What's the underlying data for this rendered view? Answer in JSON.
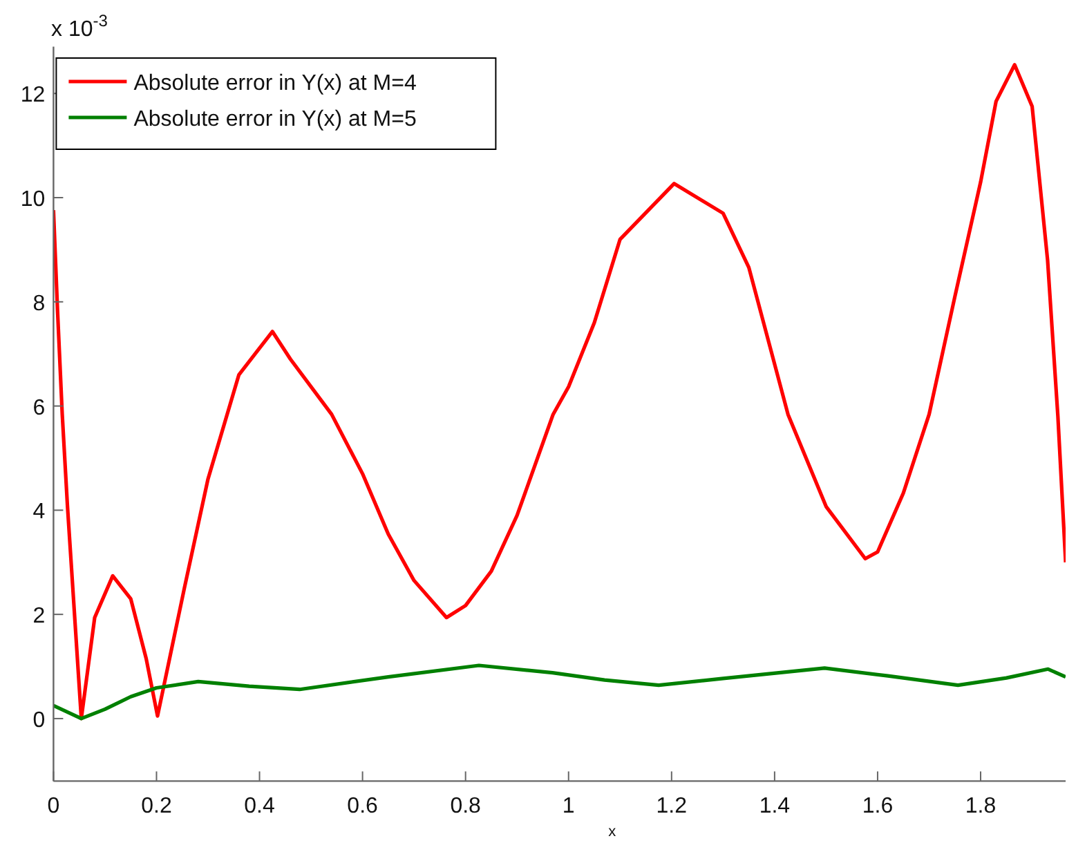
{
  "chart_data": {
    "type": "line",
    "xlabel": "x",
    "annotations": [
      "x 10$^{-3}$"
    ],
    "xlim": [
      0,
      1.965
    ],
    "ylim": [
      -1.2,
      12.9
    ],
    "xticks": [
      0,
      0.2,
      0.4,
      0.6,
      0.8,
      1,
      1.2,
      1.4,
      1.6,
      1.8
    ],
    "yticks": [
      0,
      2,
      4,
      6,
      8,
      10,
      12
    ],
    "grid": false,
    "legend": "top left",
    "line_style": "solid",
    "marker": "none",
    "series": [
      {
        "name": "Absolute error in Y(x) at M=4",
        "color": "#ff0000",
        "x": [
          0,
          0.008,
          0.017,
          0.027,
          0.054,
          0.08,
          0.115,
          0.15,
          0.18,
          0.202,
          0.254,
          0.3,
          0.36,
          0.425,
          0.46,
          0.54,
          0.6,
          0.65,
          0.7,
          0.763,
          0.8,
          0.85,
          0.9,
          0.97,
          1.0,
          1.05,
          1.1,
          1.205,
          1.3,
          1.35,
          1.426,
          1.5,
          1.576,
          1.6,
          1.65,
          1.7,
          1.75,
          1.8,
          1.83,
          1.866,
          1.9,
          1.93,
          1.95,
          1.965
        ],
        "values": [
          9.76,
          7.8,
          5.84,
          4.1,
          0,
          1.94,
          2.74,
          2.3,
          1.15,
          0.05,
          2.5,
          4.6,
          6.6,
          7.43,
          6.9,
          5.84,
          4.7,
          3.54,
          2.65,
          1.94,
          2.17,
          2.83,
          3.9,
          5.84,
          6.37,
          7.6,
          9.2,
          10.27,
          9.7,
          8.66,
          5.84,
          4.07,
          3.07,
          3.2,
          4.33,
          5.84,
          8.1,
          10.3,
          11.85,
          12.55,
          11.75,
          8.8,
          5.8,
          3.0
        ]
      },
      {
        "name": "Absolute error in Y(x) at M=5",
        "color": "#008000",
        "x": [
          0,
          0.054,
          0.1,
          0.15,
          0.2,
          0.281,
          0.38,
          0.478,
          0.65,
          0.826,
          0.969,
          1.07,
          1.175,
          1.3,
          1.497,
          1.62,
          1.756,
          1.85,
          1.931,
          1.965
        ],
        "values": [
          0.25,
          0,
          0.18,
          0.42,
          0.59,
          0.71,
          0.62,
          0.56,
          0.8,
          1.02,
          0.88,
          0.74,
          0.64,
          0.77,
          0.97,
          0.82,
          0.64,
          0.78,
          0.95,
          0.8
        ]
      }
    ]
  }
}
